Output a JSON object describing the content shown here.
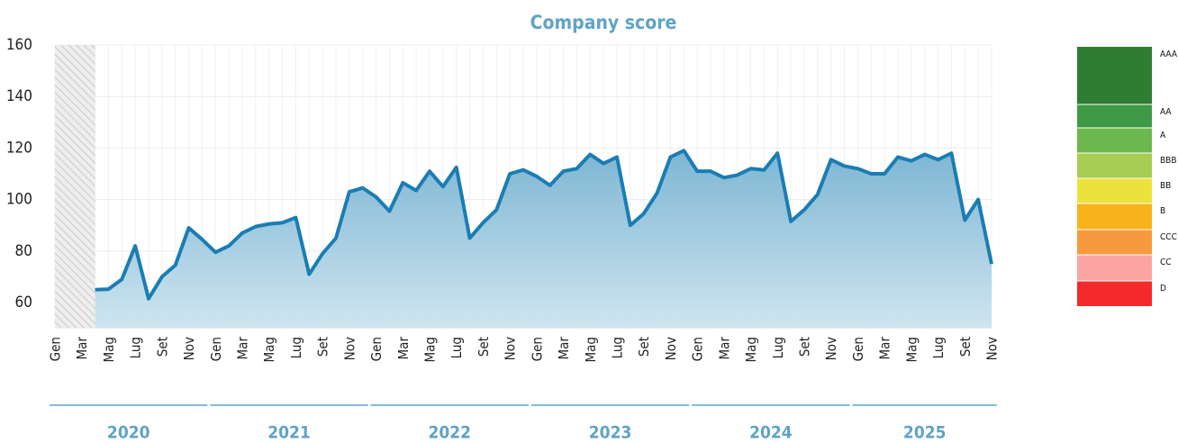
{
  "chart_data": {
    "type": "line",
    "title": "Company score",
    "categories": [
      "Gen",
      null,
      "Mar",
      null,
      "Mag",
      null,
      "Lug",
      null,
      "Set",
      null,
      "Nov",
      null,
      "Gen",
      null,
      "Mar",
      null,
      "Mag",
      null,
      "Lug",
      null,
      "Set",
      null,
      "Nov",
      null,
      "Gen",
      null,
      "Mar",
      null,
      "Mag",
      null,
      "Lug",
      null,
      "Set",
      null,
      "Nov",
      null,
      "Gen",
      null,
      "Mar",
      null,
      "Mag",
      null,
      "Lug",
      null,
      "Set",
      null,
      "Nov",
      null,
      "Gen",
      null,
      "Mar",
      null,
      "Mag",
      null,
      "Lug",
      null,
      "Set",
      null,
      "Nov",
      null,
      "Gen",
      null,
      "Mar",
      null,
      "Mag",
      null,
      "Lug",
      null,
      "Set",
      null,
      "Nov"
    ],
    "years": [
      "2020",
      "2021",
      "2022",
      "2023",
      "2024",
      "2025"
    ],
    "series": [
      {
        "color": "#1a7db4",
        "values": [
          null,
          null,
          null,
          65,
          65.2,
          69,
          82,
          61.5,
          70,
          74.5,
          89,
          84.5,
          79.5,
          82,
          87,
          89.5,
          90.5,
          91,
          93,
          71,
          79,
          85,
          103,
          104.5,
          101,
          95.5,
          106.5,
          103.5,
          111,
          105,
          112.5,
          85,
          91,
          96,
          110,
          111.5,
          109,
          105.5,
          111,
          112,
          117.5,
          114,
          116.5,
          90,
          94.5,
          102.5,
          116.5,
          119,
          111,
          111,
          108.5,
          109.5,
          112,
          111.5,
          118,
          91.5,
          96,
          102,
          115.5,
          113,
          112,
          110,
          110,
          116.5,
          115,
          117.5,
          115.5,
          118,
          92,
          100,
          75
        ]
      }
    ],
    "ylim": [
      50,
      160
    ],
    "yticks": [
      60,
      80,
      100,
      120,
      140,
      160
    ],
    "grid": true,
    "rating_scale": [
      {
        "label": "AAA",
        "color": "#2e7d32"
      },
      {
        "label": "AA",
        "color": "#3f9a45"
      },
      {
        "label": "A",
        "color": "#6cb84e"
      },
      {
        "label": "BBB",
        "color": "#a9cc52"
      },
      {
        "label": "BB",
        "color": "#ece23e"
      },
      {
        "label": "B",
        "color": "#f9b31a"
      },
      {
        "label": "CCC",
        "color": "#f79a3e"
      },
      {
        "label": "CC",
        "color": "#fca3a3"
      },
      {
        "label": "D",
        "color": "#f42a2a"
      }
    ]
  }
}
